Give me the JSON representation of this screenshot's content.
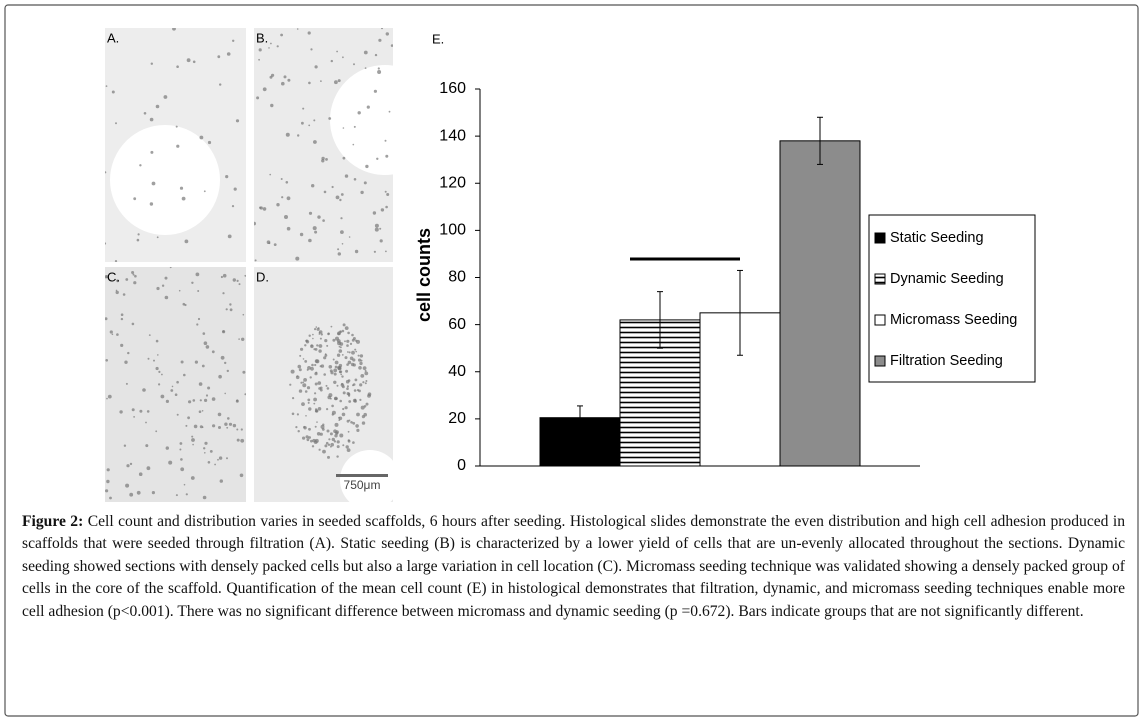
{
  "panels": [
    {
      "label": "A."
    },
    {
      "label": "B."
    },
    {
      "label": "C."
    },
    {
      "label": "D."
    }
  ],
  "scale_bar": "750μm",
  "chart_data": {
    "type": "bar",
    "panel_label": "E.",
    "ylabel": "cell counts",
    "categories": [
      null
    ],
    "series": [
      {
        "name": "Static Seeding",
        "color": "#000000",
        "values": [
          20.5
        ],
        "errors": [
          5
        ]
      },
      {
        "name": "Dynamic Seeding",
        "color": "#ffffff",
        "hatch": "horizontal",
        "values": [
          62
        ],
        "errors": [
          12
        ]
      },
      {
        "name": "Micromass Seeding",
        "color": "#ffffff",
        "values": [
          65
        ],
        "errors": [
          18
        ]
      },
      {
        "name": "Filtration Seeding",
        "color": "#8c8c8c",
        "values": [
          138
        ],
        "errors": [
          10
        ]
      }
    ],
    "ylim": [
      0,
      160
    ],
    "yticks": [
      0,
      20,
      40,
      60,
      80,
      100,
      120,
      140,
      160
    ],
    "grid": false,
    "legend": "right"
  },
  "caption": {
    "label": "Figure 2:",
    "text": "Cell count and distribution varies in seeded scaffolds, 6 hours after seeding. Histological slides demonstrate the even distribution and high cell adhesion produced in scaffolds that were seeded through filtration (A). Static seeding (B) is characterized by a lower yield of cells that are un-evenly allocated throughout the sections. Dynamic seeding showed sections with densely packed cells but also a large variation in cell location (C). Micromass seeding technique was validated showing a densely packed group of cells in the core of the scaffold. Quantification of the mean cell count (E) in histological demonstrates that filtration, dynamic, and micromass seeding techniques enable more cell adhesion (p<0.001). There was no significant difference between micromass and dynamic seeding (p =0.672). Bars indicate groups that are not significantly different."
  }
}
